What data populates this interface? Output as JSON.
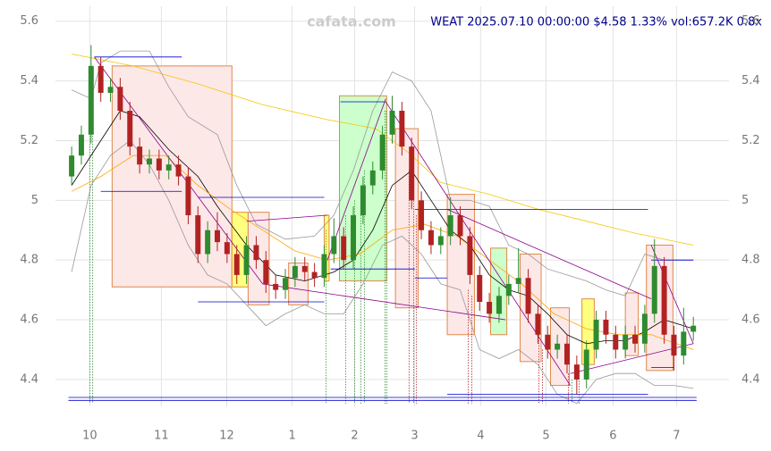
{
  "chart_data": {
    "type": "candlestick",
    "title": "WEAT 2025.07.10 00:00:00 $4.58 1.33% vol:657.2K 0.8x",
    "watermark": "cafata.com",
    "xlim": [
      -4,
      204
    ],
    "ylim": [
      4.31,
      5.65
    ],
    "xticks": [
      {
        "value": 6.6,
        "label": "10"
      },
      {
        "value": 28.7,
        "label": "11"
      },
      {
        "value": 48.9,
        "label": "12"
      },
      {
        "value": 69.1,
        "label": "1"
      },
      {
        "value": 88.4,
        "label": "2"
      },
      {
        "value": 106.9,
        "label": "3"
      },
      {
        "value": 127.3,
        "label": "4"
      },
      {
        "value": 147.5,
        "label": "5"
      },
      {
        "value": 168.2,
        "label": "6"
      },
      {
        "value": 187.8,
        "label": "7"
      }
    ],
    "yticks": [
      4.4,
      4.6,
      4.8,
      5.0,
      5.2,
      5.4,
      5.6
    ],
    "grid": true,
    "up_color": "#2e8b2e",
    "down_color": "#b22222",
    "x": [
      1,
      4,
      7,
      10,
      13,
      16,
      19,
      22,
      25,
      28,
      31,
      34,
      37,
      40,
      43,
      46,
      49,
      52,
      55,
      58,
      61,
      64,
      67,
      70,
      73,
      76,
      79,
      82,
      85,
      88,
      91,
      94,
      97,
      100,
      103,
      106,
      109,
      112,
      115,
      118,
      121,
      124,
      127,
      130,
      133,
      136,
      139,
      142,
      145,
      148,
      151,
      154,
      157,
      160,
      163,
      166,
      169,
      172,
      175,
      178,
      181,
      184,
      187,
      190,
      193
    ],
    "open": [
      5.08,
      5.15,
      5.22,
      5.45,
      5.36,
      5.38,
      5.3,
      5.18,
      5.12,
      5.14,
      5.1,
      5.12,
      5.08,
      4.95,
      4.82,
      4.9,
      4.86,
      4.82,
      4.75,
      4.85,
      4.8,
      4.72,
      4.7,
      4.74,
      4.78,
      4.76,
      4.74,
      4.82,
      4.88,
      4.8,
      4.95,
      5.05,
      5.1,
      5.22,
      5.3,
      5.18,
      5.0,
      4.9,
      4.85,
      4.88,
      4.95,
      4.88,
      4.75,
      4.66,
      4.62,
      4.68,
      4.72,
      4.74,
      4.62,
      4.55,
      4.5,
      4.52,
      4.45,
      4.4,
      4.5,
      4.6,
      4.55,
      4.5,
      4.55,
      4.52,
      4.62,
      4.78,
      4.55,
      4.48,
      4.56
    ],
    "high": [
      5.18,
      5.25,
      5.52,
      5.48,
      5.41,
      5.41,
      5.33,
      5.21,
      5.17,
      5.17,
      5.15,
      5.15,
      5.11,
      4.98,
      4.93,
      4.96,
      4.89,
      4.85,
      4.88,
      4.88,
      4.83,
      4.75,
      4.77,
      4.81,
      4.81,
      4.79,
      4.85,
      4.94,
      4.91,
      4.98,
      5.08,
      5.13,
      5.25,
      5.35,
      5.33,
      5.21,
      5.03,
      4.93,
      4.91,
      5.01,
      4.98,
      4.91,
      4.78,
      4.69,
      4.71,
      4.75,
      4.84,
      4.77,
      4.65,
      4.58,
      4.55,
      4.55,
      4.48,
      4.53,
      4.63,
      4.63,
      4.58,
      4.58,
      4.58,
      4.65,
      4.87,
      4.81,
      4.58,
      4.64,
      4.61
    ],
    "low": [
      5.05,
      5.12,
      5.19,
      5.33,
      5.33,
      5.27,
      5.15,
      5.09,
      5.09,
      5.07,
      5.07,
      5.05,
      4.92,
      4.79,
      4.79,
      4.83,
      4.79,
      4.72,
      4.72,
      4.77,
      4.69,
      4.67,
      4.67,
      4.71,
      4.73,
      4.71,
      4.71,
      4.79,
      4.77,
      4.77,
      4.92,
      5.02,
      5.07,
      5.19,
      5.15,
      4.97,
      4.87,
      4.82,
      4.82,
      4.85,
      4.85,
      4.72,
      4.63,
      4.59,
      4.59,
      4.65,
      4.69,
      4.59,
      4.52,
      4.47,
      4.47,
      4.42,
      4.35,
      4.37,
      4.47,
      4.52,
      4.47,
      4.47,
      4.49,
      4.49,
      4.59,
      4.52,
      4.43,
      4.45,
      4.53
    ],
    "close": [
      5.15,
      5.22,
      5.45,
      5.36,
      5.38,
      5.3,
      5.18,
      5.12,
      5.14,
      5.1,
      5.12,
      5.08,
      4.95,
      4.82,
      4.9,
      4.86,
      4.82,
      4.75,
      4.85,
      4.8,
      4.72,
      4.7,
      4.74,
      4.78,
      4.76,
      4.74,
      4.82,
      4.88,
      4.8,
      4.95,
      5.05,
      5.1,
      5.22,
      5.3,
      5.18,
      5.0,
      4.9,
      4.85,
      4.88,
      4.95,
      4.88,
      4.75,
      4.66,
      4.62,
      4.68,
      4.72,
      4.74,
      4.62,
      4.55,
      4.5,
      4.52,
      4.45,
      4.4,
      4.5,
      4.6,
      4.55,
      4.5,
      4.55,
      4.52,
      4.62,
      4.78,
      4.55,
      4.48,
      4.56,
      4.58
    ],
    "boxes": [
      {
        "color": "#fde8e8",
        "x": [
          13.5,
          50.5
        ],
        "y": [
          4.71,
          5.45
        ]
      },
      {
        "color": "#ffff80",
        "x": [
          50.5,
          55.5
        ],
        "y": [
          4.71,
          4.96
        ]
      },
      {
        "color": "#fde8e8",
        "x": [
          55.5,
          62
        ],
        "y": [
          4.65,
          4.96
        ]
      },
      {
        "color": "#fde8e8",
        "x": [
          68,
          74
        ],
        "y": [
          4.65,
          4.79
        ]
      },
      {
        "color": "#ffff80",
        "x": [
          79,
          80.5
        ],
        "y": [
          4.73,
          4.95
        ]
      },
      {
        "color": "#ccffcc",
        "x": [
          83.7,
          98.3
        ],
        "y": [
          4.73,
          5.35
        ]
      },
      {
        "color": "#fde8e8",
        "x": [
          101,
          108
        ],
        "y": [
          4.64,
          5.24
        ]
      },
      {
        "color": "#fde8e8",
        "x": [
          117,
          125.4
        ],
        "y": [
          4.55,
          5.02
        ]
      },
      {
        "color": "#ccffcc",
        "x": [
          130.4,
          135.4
        ],
        "y": [
          4.55,
          4.84
        ]
      },
      {
        "color": "#fde8e8",
        "x": [
          139.5,
          146
        ],
        "y": [
          4.46,
          4.82
        ]
      },
      {
        "color": "#fde8e8",
        "x": [
          148.9,
          154.7
        ],
        "y": [
          4.38,
          4.64
        ]
      },
      {
        "color": "#ffff80",
        "x": [
          158.6,
          162.4
        ],
        "y": [
          4.45,
          4.67
        ]
      },
      {
        "color": "#fde8e8",
        "x": [
          172,
          176
        ],
        "y": [
          4.48,
          4.69
        ]
      },
      {
        "color": "#fde8e8",
        "x": [
          178.5,
          186.7
        ],
        "y": [
          4.43,
          4.85
        ]
      }
    ],
    "lines": [
      {
        "color": "#000000",
        "x": [
          1,
          10,
          16,
          22,
          31,
          40,
          46,
          55,
          64,
          73,
          82,
          88,
          94,
          100,
          106,
          112,
          118,
          124,
          130,
          136,
          142,
          148,
          154,
          160,
          166,
          172,
          178,
          184,
          190,
          193
        ],
        "values": [
          5.05,
          5.2,
          5.3,
          5.28,
          5.17,
          5.08,
          4.98,
          4.85,
          4.75,
          4.73,
          4.76,
          4.8,
          4.9,
          5.05,
          5.1,
          5.0,
          4.9,
          4.85,
          4.75,
          4.7,
          4.68,
          4.62,
          4.55,
          4.52,
          4.53,
          4.53,
          4.56,
          4.6,
          4.58,
          4.57
        ]
      },
      {
        "color": "#ffa500",
        "x": [
          1,
          10,
          20,
          30,
          40,
          50,
          60,
          70,
          80,
          90,
          100,
          110,
          120,
          130,
          140,
          150,
          160,
          170,
          180,
          193
        ],
        "values": [
          5.03,
          5.08,
          5.15,
          5.15,
          5.05,
          4.97,
          4.9,
          4.83,
          4.8,
          4.82,
          4.9,
          4.92,
          4.88,
          4.8,
          4.72,
          4.62,
          4.57,
          4.55,
          4.55,
          4.5
        ]
      },
      {
        "color": "#f5c800",
        "x": [
          1,
          20,
          40,
          60,
          80,
          95,
          105,
          115,
          130,
          145,
          160,
          175,
          193
        ],
        "values": [
          5.49,
          5.45,
          5.39,
          5.32,
          5.27,
          5.24,
          5.16,
          5.06,
          5.02,
          4.97,
          4.93,
          4.89,
          4.85
        ]
      },
      {
        "color": "#999999",
        "x": [
          1,
          7,
          10,
          16,
          25,
          31,
          37,
          46,
          52,
          58,
          67,
          76,
          82,
          88,
          94,
          100,
          106,
          112,
          118,
          124,
          130,
          136,
          142,
          148,
          154,
          160,
          166,
          172,
          178,
          184,
          193
        ],
        "values": [
          5.37,
          5.34,
          5.46,
          5.5,
          5.5,
          5.38,
          5.28,
          5.22,
          5.05,
          4.92,
          4.87,
          4.88,
          4.95,
          5.1,
          5.3,
          5.43,
          5.4,
          5.3,
          5.0,
          5.0,
          4.98,
          4.85,
          4.82,
          4.77,
          4.75,
          4.73,
          4.7,
          4.68,
          4.82,
          4.8,
          4.8
        ]
      },
      {
        "color": "#999999",
        "x": [
          1,
          7,
          13,
          19,
          25,
          31,
          37,
          43,
          49,
          55,
          61,
          67,
          73,
          79,
          85,
          91,
          97,
          103,
          109,
          115,
          121,
          127,
          133,
          139,
          145,
          151,
          157,
          163,
          169,
          175,
          181,
          187,
          193
        ],
        "values": [
          4.76,
          5.05,
          5.15,
          5.2,
          5.12,
          5.0,
          4.85,
          4.75,
          4.72,
          4.65,
          4.58,
          4.62,
          4.65,
          4.62,
          4.62,
          4.72,
          4.85,
          4.88,
          4.82,
          4.72,
          4.7,
          4.5,
          4.47,
          4.5,
          4.45,
          4.35,
          4.32,
          4.4,
          4.42,
          4.42,
          4.38,
          4.38,
          4.37
        ]
      }
    ],
    "trendlines": {
      "color": "#8b008b",
      "segments": [
        {
          "x": [
            8,
            60
          ],
          "y": [
            5.48,
            4.72
          ]
        },
        {
          "x": [
            60,
            135
          ],
          "y": [
            4.72,
            4.6
          ]
        },
        {
          "x": [
            55,
            80
          ],
          "y": [
            4.93,
            4.95
          ]
        },
        {
          "x": [
            80,
            98
          ],
          "y": [
            4.8,
            5.34
          ]
        },
        {
          "x": [
            98,
            155
          ],
          "y": [
            5.33,
            4.38
          ]
        },
        {
          "x": [
            117,
            180
          ],
          "y": [
            4.97,
            4.67
          ]
        },
        {
          "x": [
            155,
            193
          ],
          "y": [
            4.42,
            4.52
          ]
        },
        {
          "x": [
            180,
            193
          ],
          "y": [
            4.85,
            4.52
          ]
        }
      ]
    },
    "levels": {
      "color": "#0000cd",
      "segments": [
        {
          "x": [
            8,
            35
          ],
          "y": [
            5.48,
            5.48
          ]
        },
        {
          "x": [
            10,
            35
          ],
          "y": [
            5.03,
            5.03
          ]
        },
        {
          "x": [
            40,
            79
          ],
          "y": [
            5.01,
            5.01
          ]
        },
        {
          "x": [
            40,
            79
          ],
          "y": [
            4.66,
            4.66
          ]
        },
        {
          "x": [
            84,
            98
          ],
          "y": [
            5.33,
            5.33
          ]
        },
        {
          "x": [
            81,
            107
          ],
          "y": [
            4.77,
            4.77
          ]
        },
        {
          "x": [
            107,
            117
          ],
          "y": [
            4.74,
            4.74
          ]
        },
        {
          "x": [
            107,
            179
          ],
          "y": [
            4.97,
            4.97
          ]
        },
        {
          "x": [
            117,
            179
          ],
          "y": [
            4.35,
            4.35
          ]
        },
        {
          "x": [
            180,
            193
          ],
          "y": [
            4.8,
            4.8
          ]
        },
        {
          "x": [
            180,
            187
          ],
          "y": [
            4.44,
            4.44
          ]
        },
        {
          "x": [
            0,
            194
          ],
          "y": [
            4.34,
            4.34
          ]
        },
        {
          "x": [
            0,
            194
          ],
          "y": [
            4.33,
            4.33
          ]
        }
      ]
    },
    "signals": [
      {
        "color": "#2e8b2e",
        "x": [
          6.6,
          7.5,
          79.6,
          85.6,
          88.4,
          90.3,
          91.4,
          97.8,
          98.3,
          155.5
        ],
        "y": [
          5.45,
          5.45,
          4.9,
          4.95,
          5.0,
          5.05,
          5.1,
          5.3,
          5.3,
          4.4
        ]
      },
      {
        "color": "#b22222",
        "x": [
          105.2,
          106.6,
          107.5,
          123.5,
          124.6,
          145.3,
          146.4,
          154.4,
          157.7
        ],
        "y": [
          5.1,
          5.0,
          4.95,
          4.7,
          4.68,
          4.55,
          4.5,
          4.42,
          4.45
        ]
      }
    ]
  }
}
